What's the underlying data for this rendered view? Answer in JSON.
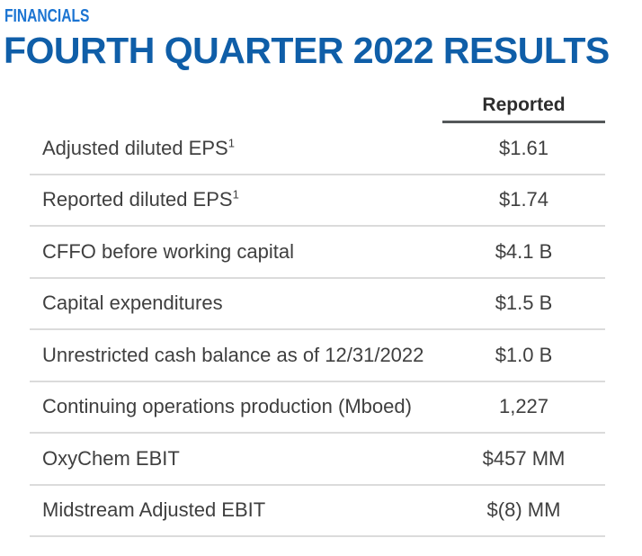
{
  "header": {
    "eyebrow": "FINANCIALS",
    "title": "FOURTH QUARTER 2022 RESULTS"
  },
  "table": {
    "value_column_header": "Reported",
    "rows": [
      {
        "label": "Adjusted diluted EPS",
        "footnote": "1",
        "value": "$1.61"
      },
      {
        "label": "Reported diluted EPS",
        "footnote": "1",
        "value": "$1.74"
      },
      {
        "label": "CFFO before working capital",
        "footnote": "",
        "value": "$4.1 B"
      },
      {
        "label": "Capital expenditures",
        "footnote": "",
        "value": "$1.5 B"
      },
      {
        "label": "Unrestricted cash balance as of 12/31/2022",
        "footnote": "",
        "value": "$1.0 B"
      },
      {
        "label": "Continuing operations production (Mboed)",
        "footnote": "",
        "value": "1,227"
      },
      {
        "label": "OxyChem EBIT",
        "footnote": "",
        "value": "$457 MM"
      },
      {
        "label": "Midstream Adjusted EBIT",
        "footnote": "",
        "value": "$(8) MM"
      }
    ]
  },
  "colors": {
    "eyebrow_blue": "#1B74D2",
    "title_blue": "#0F5EA8",
    "body_text": "#3F3F3F",
    "header_text": "#2D2D2D",
    "row_divider": "#DBDBDB",
    "header_underline": "#54585A"
  }
}
